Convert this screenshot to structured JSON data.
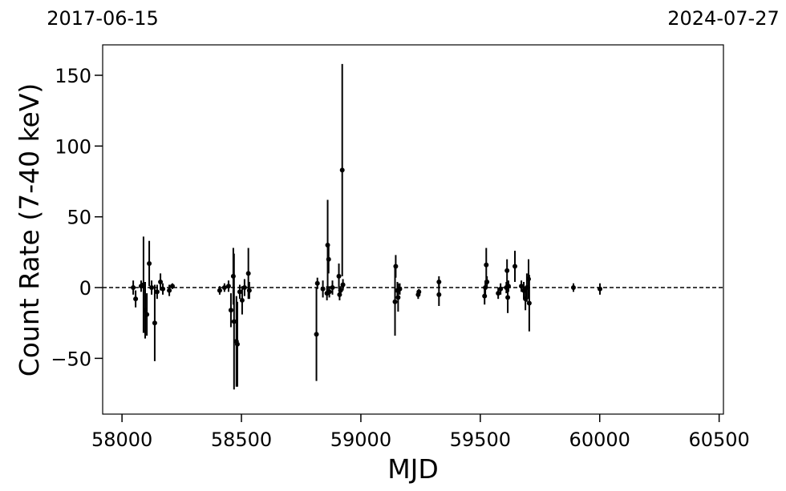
{
  "chart_data": {
    "type": "errorbar",
    "x_label": "MJD",
    "y_label": "Count Rate (7-40 keV)",
    "color": "#000000",
    "xlim": [
      57919,
      60518
    ],
    "ylim": [
      -89.4,
      171.5
    ],
    "xticks": [
      58000,
      58500,
      59000,
      59500,
      60000,
      60500
    ],
    "yticks": [
      {
        "value": -50,
        "label": "−50"
      },
      0,
      50,
      100,
      150
    ],
    "top_xticks": [
      {
        "value": 57919,
        "label": "2017-06-15"
      },
      {
        "value": 60518,
        "label": "2024-07-27"
      }
    ],
    "hline": 0,
    "x": [
      58047,
      58057,
      58080,
      58090,
      58097,
      58104,
      58114,
      58124,
      58137,
      58147,
      58161,
      58171,
      58198,
      58211,
      58409,
      58429,
      58446,
      58456,
      58466,
      58469,
      58479,
      58483,
      58493,
      58503,
      58513,
      58529,
      58533,
      58814,
      58818,
      58841,
      58858,
      58861,
      58865,
      58868,
      58881,
      58908,
      58911,
      58915,
      58922,
      58925,
      59143,
      59146,
      59153,
      59156,
      59163,
      59240,
      59243,
      59327,
      59327,
      59518,
      59521,
      59525,
      59528,
      59575,
      59585,
      59609,
      59612,
      59615,
      59618,
      59645,
      59672,
      59682,
      59689,
      59695,
      59702,
      59705,
      59890,
      60001
    ],
    "y": [
      0,
      -8,
      1,
      2,
      -16,
      -19,
      17,
      0,
      -25,
      -3,
      4,
      -1,
      -2,
      1,
      -2,
      0,
      1,
      -16,
      8,
      -24,
      -38,
      -40,
      -3,
      -9,
      0,
      10,
      -2,
      -33,
      3,
      -1,
      -4,
      30,
      20,
      -3,
      0,
      8,
      -5,
      -2,
      83,
      2,
      -10,
      15,
      -2,
      -7,
      -1,
      -5,
      -3,
      -5,
      4,
      -6,
      0,
      16,
      4,
      -4,
      -1,
      0,
      12,
      -7,
      1,
      15,
      1,
      -2,
      -8,
      0,
      6,
      -11,
      0,
      -1
    ],
    "yerr": [
      5,
      6,
      4,
      34,
      20,
      15,
      16,
      5,
      27,
      5,
      6,
      4,
      4,
      2,
      3,
      3,
      4,
      12,
      20,
      48,
      32,
      30,
      5,
      10,
      6,
      18,
      6,
      33,
      4,
      6,
      5,
      32,
      10,
      4,
      5,
      9,
      4,
      3,
      75,
      4,
      24,
      8,
      6,
      10,
      4,
      3,
      2,
      8,
      4,
      6,
      5,
      12,
      4,
      4,
      4,
      4,
      8,
      11,
      4,
      11,
      4,
      6,
      8,
      10,
      14,
      20,
      3,
      4
    ]
  }
}
